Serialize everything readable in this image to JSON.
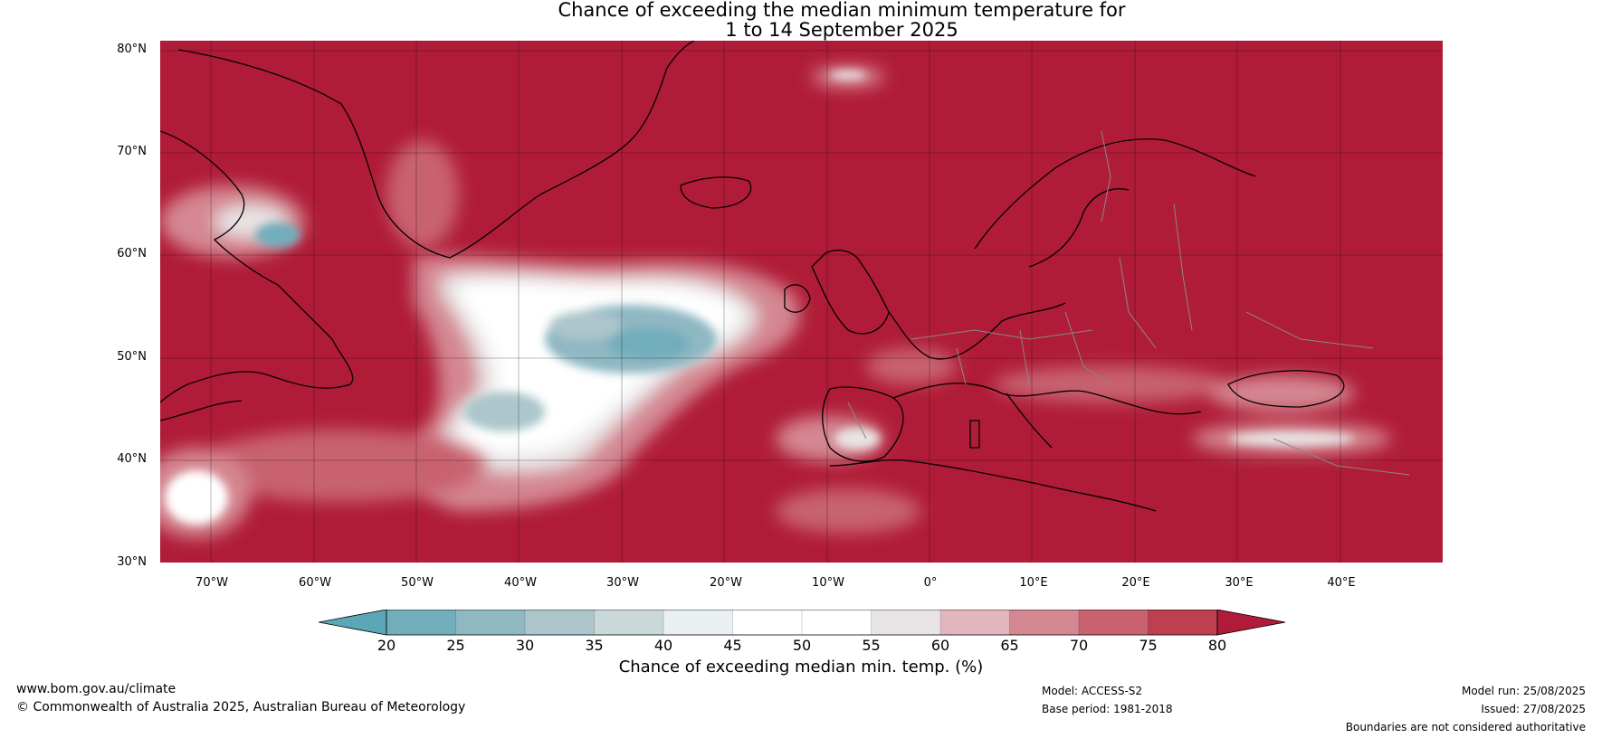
{
  "title": {
    "line1": "Chance of exceeding the median minimum temperature for",
    "line2": "1 to 14 September 2025"
  },
  "map": {
    "latitude_labels": [
      "80°N",
      "70°N",
      "60°N",
      "50°N",
      "40°N",
      "30°N"
    ],
    "longitude_labels": [
      "70°W",
      "60°W",
      "50°W",
      "40°W",
      "30°W",
      "20°W",
      "10°W",
      "0°",
      "10°E",
      "20°E",
      "30°E",
      "40°E"
    ],
    "background_color": "#b01c37"
  },
  "colorbar": {
    "ticks": [
      "20",
      "25",
      "30",
      "35",
      "40",
      "45",
      "50",
      "55",
      "60",
      "65",
      "70",
      "75",
      "80"
    ],
    "colors": [
      "#5aa7b5",
      "#72adbb",
      "#8fb8c3",
      "#acc6cb",
      "#cbd8da",
      "#e9f0f1",
      "#ffffff",
      "#ffffff",
      "#e8e4e5",
      "#e1b6bd",
      "#d48791",
      "#c8626e",
      "#bd3f50",
      "#b01c37"
    ],
    "label": "Chance of exceeding median min. temp. (%)"
  },
  "footer": {
    "website": "www.bom.gov.au/climate",
    "copyright": "© Commonwealth of Australia 2025, Australian Bureau of Meteorology",
    "model": "Model: ACCESS-S2",
    "base_period": "Base period: 1981-2018",
    "model_run": "Model run: 25/08/2025",
    "issued": "Issued: 27/08/2025",
    "disclaimer": "Boundaries are not considered authoritative"
  }
}
